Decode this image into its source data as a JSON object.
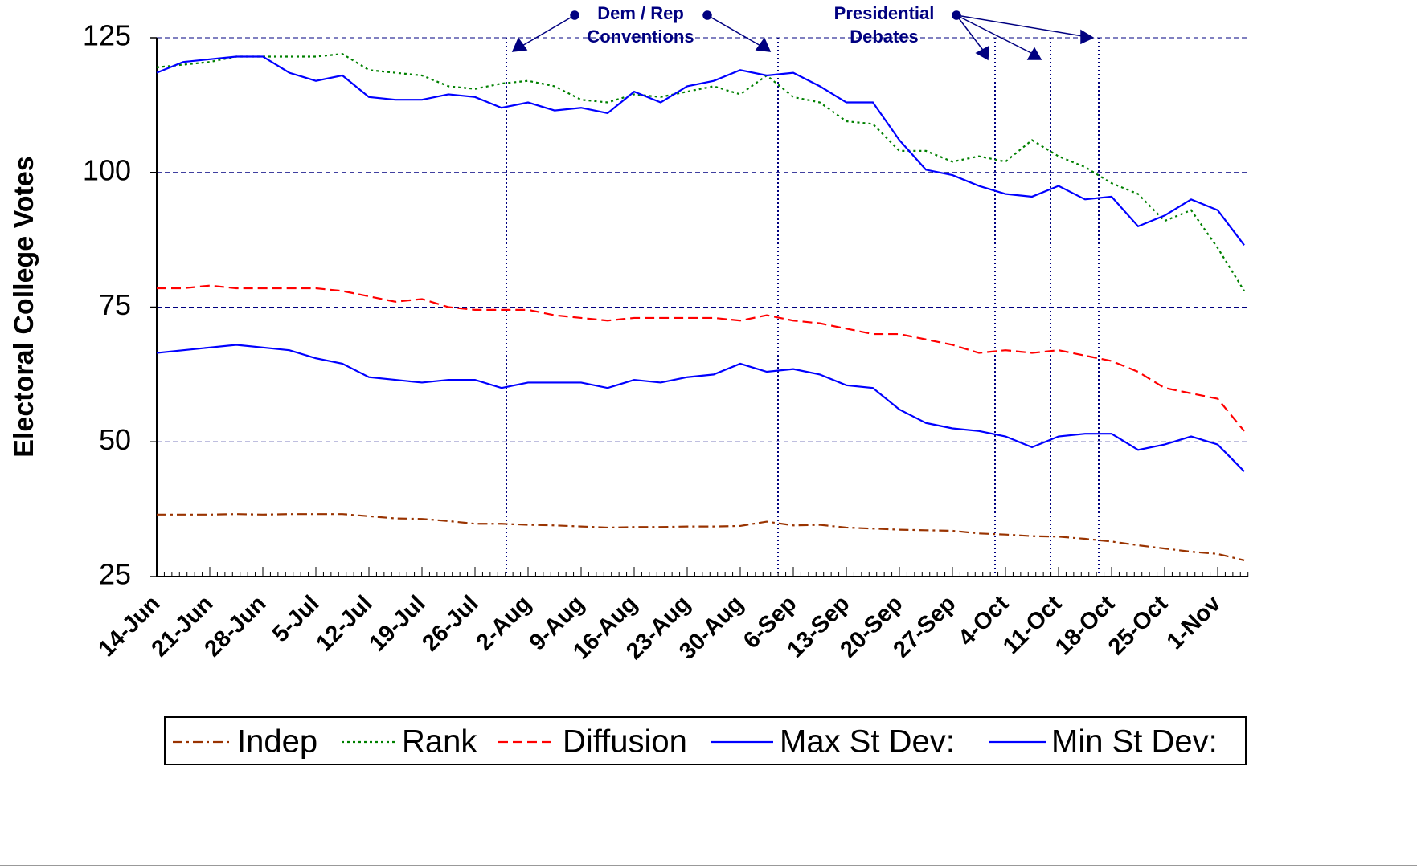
{
  "chart_data": {
    "type": "line",
    "y_label": "Electoral College Votes",
    "categories": [
      "14-Jun",
      null,
      "21-Jun",
      null,
      "28-Jun",
      null,
      "5-Jul",
      null,
      "12-Jul",
      null,
      "19-Jul",
      null,
      "26-Jul",
      null,
      "2-Aug",
      null,
      "9-Aug",
      null,
      "16-Aug",
      null,
      "23-Aug",
      null,
      "30-Aug",
      null,
      "6-Sep",
      null,
      "13-Sep",
      null,
      "20-Sep",
      null,
      "27-Sep",
      null,
      "4-Oct",
      null,
      "11-Oct",
      null,
      "18-Oct",
      null,
      "25-Oct",
      null,
      "1-Nov",
      null
    ],
    "series": [
      {
        "name": "Indep",
        "color": "#993300",
        "dash": "dashdot",
        "values": [
          36.5,
          36.5,
          36.5,
          36.6,
          36.5,
          36.6,
          36.6,
          36.6,
          36.2,
          35.8,
          35.7,
          35.3,
          34.8,
          34.8,
          34.6,
          34.5,
          34.3,
          34.1,
          34.2,
          34.2,
          34.3,
          34.3,
          34.4,
          35.2,
          34.5,
          34.6,
          34.1,
          33.9,
          33.7,
          33.6,
          33.5,
          33,
          32.8,
          32.5,
          32.4,
          32,
          31.5,
          30.8,
          30.2,
          29.6,
          29.2,
          28
        ]
      },
      {
        "name": "Rank",
        "color": "#008000",
        "dash": "dotted",
        "values": [
          119.5,
          120,
          120.5,
          121.5,
          121.5,
          121.5,
          121.5,
          122,
          119,
          118.5,
          118,
          116,
          115.5,
          116.5,
          117,
          116,
          113.5,
          113,
          114.5,
          114,
          115,
          116,
          114.5,
          118,
          114,
          113,
          109.5,
          109,
          104,
          104,
          102,
          103,
          102,
          106,
          103,
          101,
          98,
          96,
          91,
          93,
          86,
          78
        ]
      },
      {
        "name": "Diffusion",
        "color": "#ff0000",
        "dash": "dashed",
        "values": [
          78.5,
          78.5,
          79,
          78.5,
          78.5,
          78.5,
          78.5,
          78,
          77,
          76,
          76.5,
          75,
          74.5,
          74.5,
          74.5,
          73.5,
          73,
          72.5,
          73,
          73,
          73,
          73,
          72.5,
          73.5,
          72.5,
          72,
          71,
          70,
          70,
          69,
          68,
          66.5,
          67,
          66.5,
          67,
          66,
          65,
          63,
          60,
          59,
          58,
          52
        ]
      },
      {
        "name": "Max St Dev:",
        "color": "#0000ff",
        "dash": "solid",
        "values": [
          118.5,
          120.5,
          121,
          121.5,
          121.5,
          118.5,
          117,
          118,
          114,
          113.5,
          113.5,
          114.5,
          114,
          112,
          113,
          111.5,
          112,
          111,
          115,
          113,
          116,
          117,
          119,
          118,
          118.5,
          116,
          113,
          113,
          106,
          100.5,
          99.5,
          97.5,
          96,
          95.5,
          97.5,
          95,
          95.5,
          90,
          92,
          95,
          93,
          86.5
        ]
      },
      {
        "name": "Min St Dev:",
        "color": "#0000ff",
        "dash": "solid",
        "values": [
          66.5,
          67,
          67.5,
          68,
          67.5,
          67,
          65.5,
          64.5,
          62,
          61.5,
          61,
          61.5,
          61.5,
          60,
          61,
          61,
          61,
          60,
          61.5,
          61,
          62,
          62.5,
          64.5,
          63,
          63.5,
          62.5,
          60.5,
          60,
          56,
          53.5,
          52.5,
          52,
          51,
          49,
          51,
          51.5,
          51.5,
          48.5,
          49.5,
          51,
          49.5,
          44.5
        ]
      }
    ],
    "ylim": [
      25,
      125
    ],
    "yticks": [
      25,
      50,
      75,
      100,
      125
    ],
    "grid": true,
    "annotations": [
      [
        "Dem / Rep",
        "Conventions"
      ],
      [
        "Presidential",
        "Debates"
      ]
    ],
    "legend": "bottom"
  }
}
